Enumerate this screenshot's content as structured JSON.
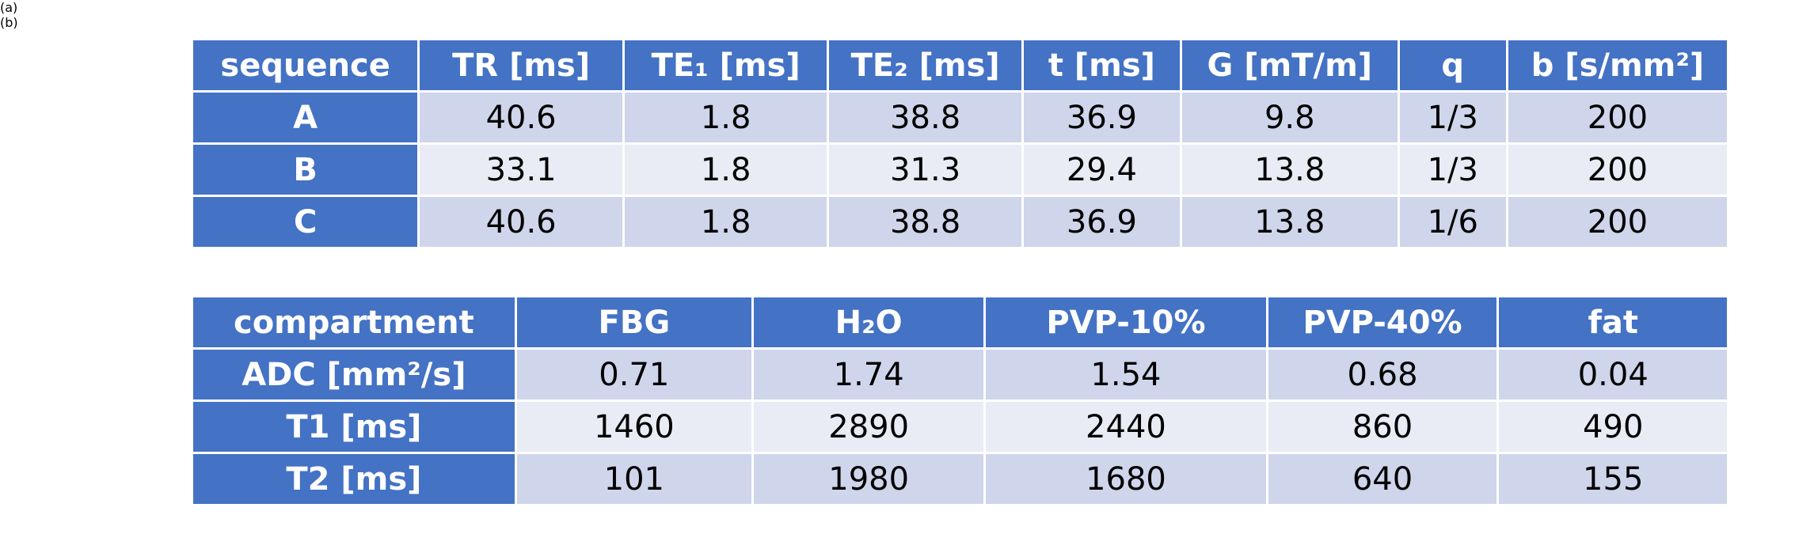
{
  "panels": [
    {
      "label": "(a)",
      "table": {
        "columns": [
          "sequence",
          "TR [ms]",
          "TE₁ [ms]",
          "TE₂ [ms]",
          "t [ms]",
          "G [mT/m]",
          "q",
          "b [s/mm²]"
        ],
        "rows": [
          [
            "A",
            "40.6",
            "1.8",
            "38.8",
            "36.9",
            "9.8",
            "1/3",
            "200"
          ],
          [
            "B",
            "33.1",
            "1.8",
            "31.3",
            "29.4",
            "13.8",
            "1/3",
            "200"
          ],
          [
            "C",
            "40.6",
            "1.8",
            "38.8",
            "36.9",
            "13.8",
            "1/6",
            "200"
          ]
        ]
      }
    },
    {
      "label": "(b)",
      "table": {
        "columns": [
          "compartment",
          "FBG",
          "H₂O",
          "PVP-10%",
          "PVP-40%",
          "fat"
        ],
        "rows": [
          [
            "ADC [mm²/s]",
            "0.71",
            "1.74",
            "1.54",
            "0.68",
            "0.04"
          ],
          [
            "T1 [ms]",
            "1460",
            "2890",
            "2440",
            "860",
            "490"
          ],
          [
            "T2 [ms]",
            "101",
            "1980",
            "1680",
            "640",
            "155"
          ]
        ]
      }
    }
  ]
}
